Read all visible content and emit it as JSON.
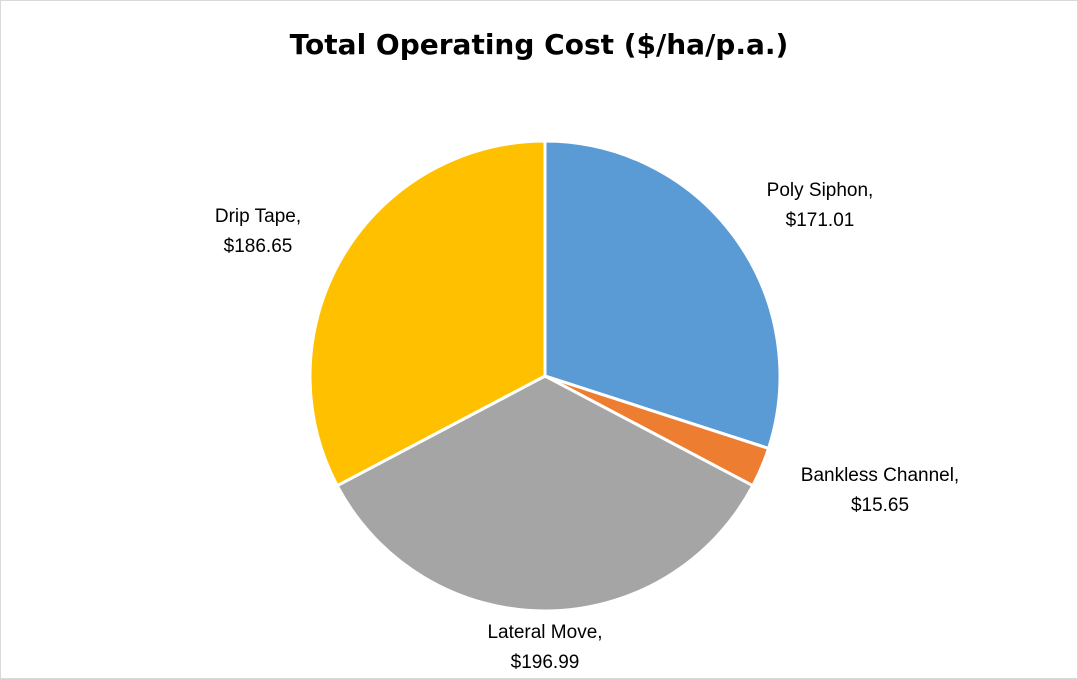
{
  "chart_data": {
    "type": "pie",
    "title": "Total Operating Cost ($/ha/p.a.)",
    "slices": [
      {
        "name": "Poly Siphon",
        "value": 171.01,
        "label": "$171.01",
        "color": "#5b9bd5"
      },
      {
        "name": "Bankless Channel",
        "value": 15.65,
        "label": "$15.65",
        "color": "#ed7d31"
      },
      {
        "name": "Lateral Move",
        "value": 196.99,
        "label": "$196.99",
        "color": "#a5a5a5"
      },
      {
        "name": "Drip Tape",
        "value": 186.65,
        "label": "$186.65",
        "color": "#ffc000"
      }
    ],
    "start_angle": "12 o'clock, clockwise",
    "legend": "none",
    "data_labels": "category name, value"
  }
}
